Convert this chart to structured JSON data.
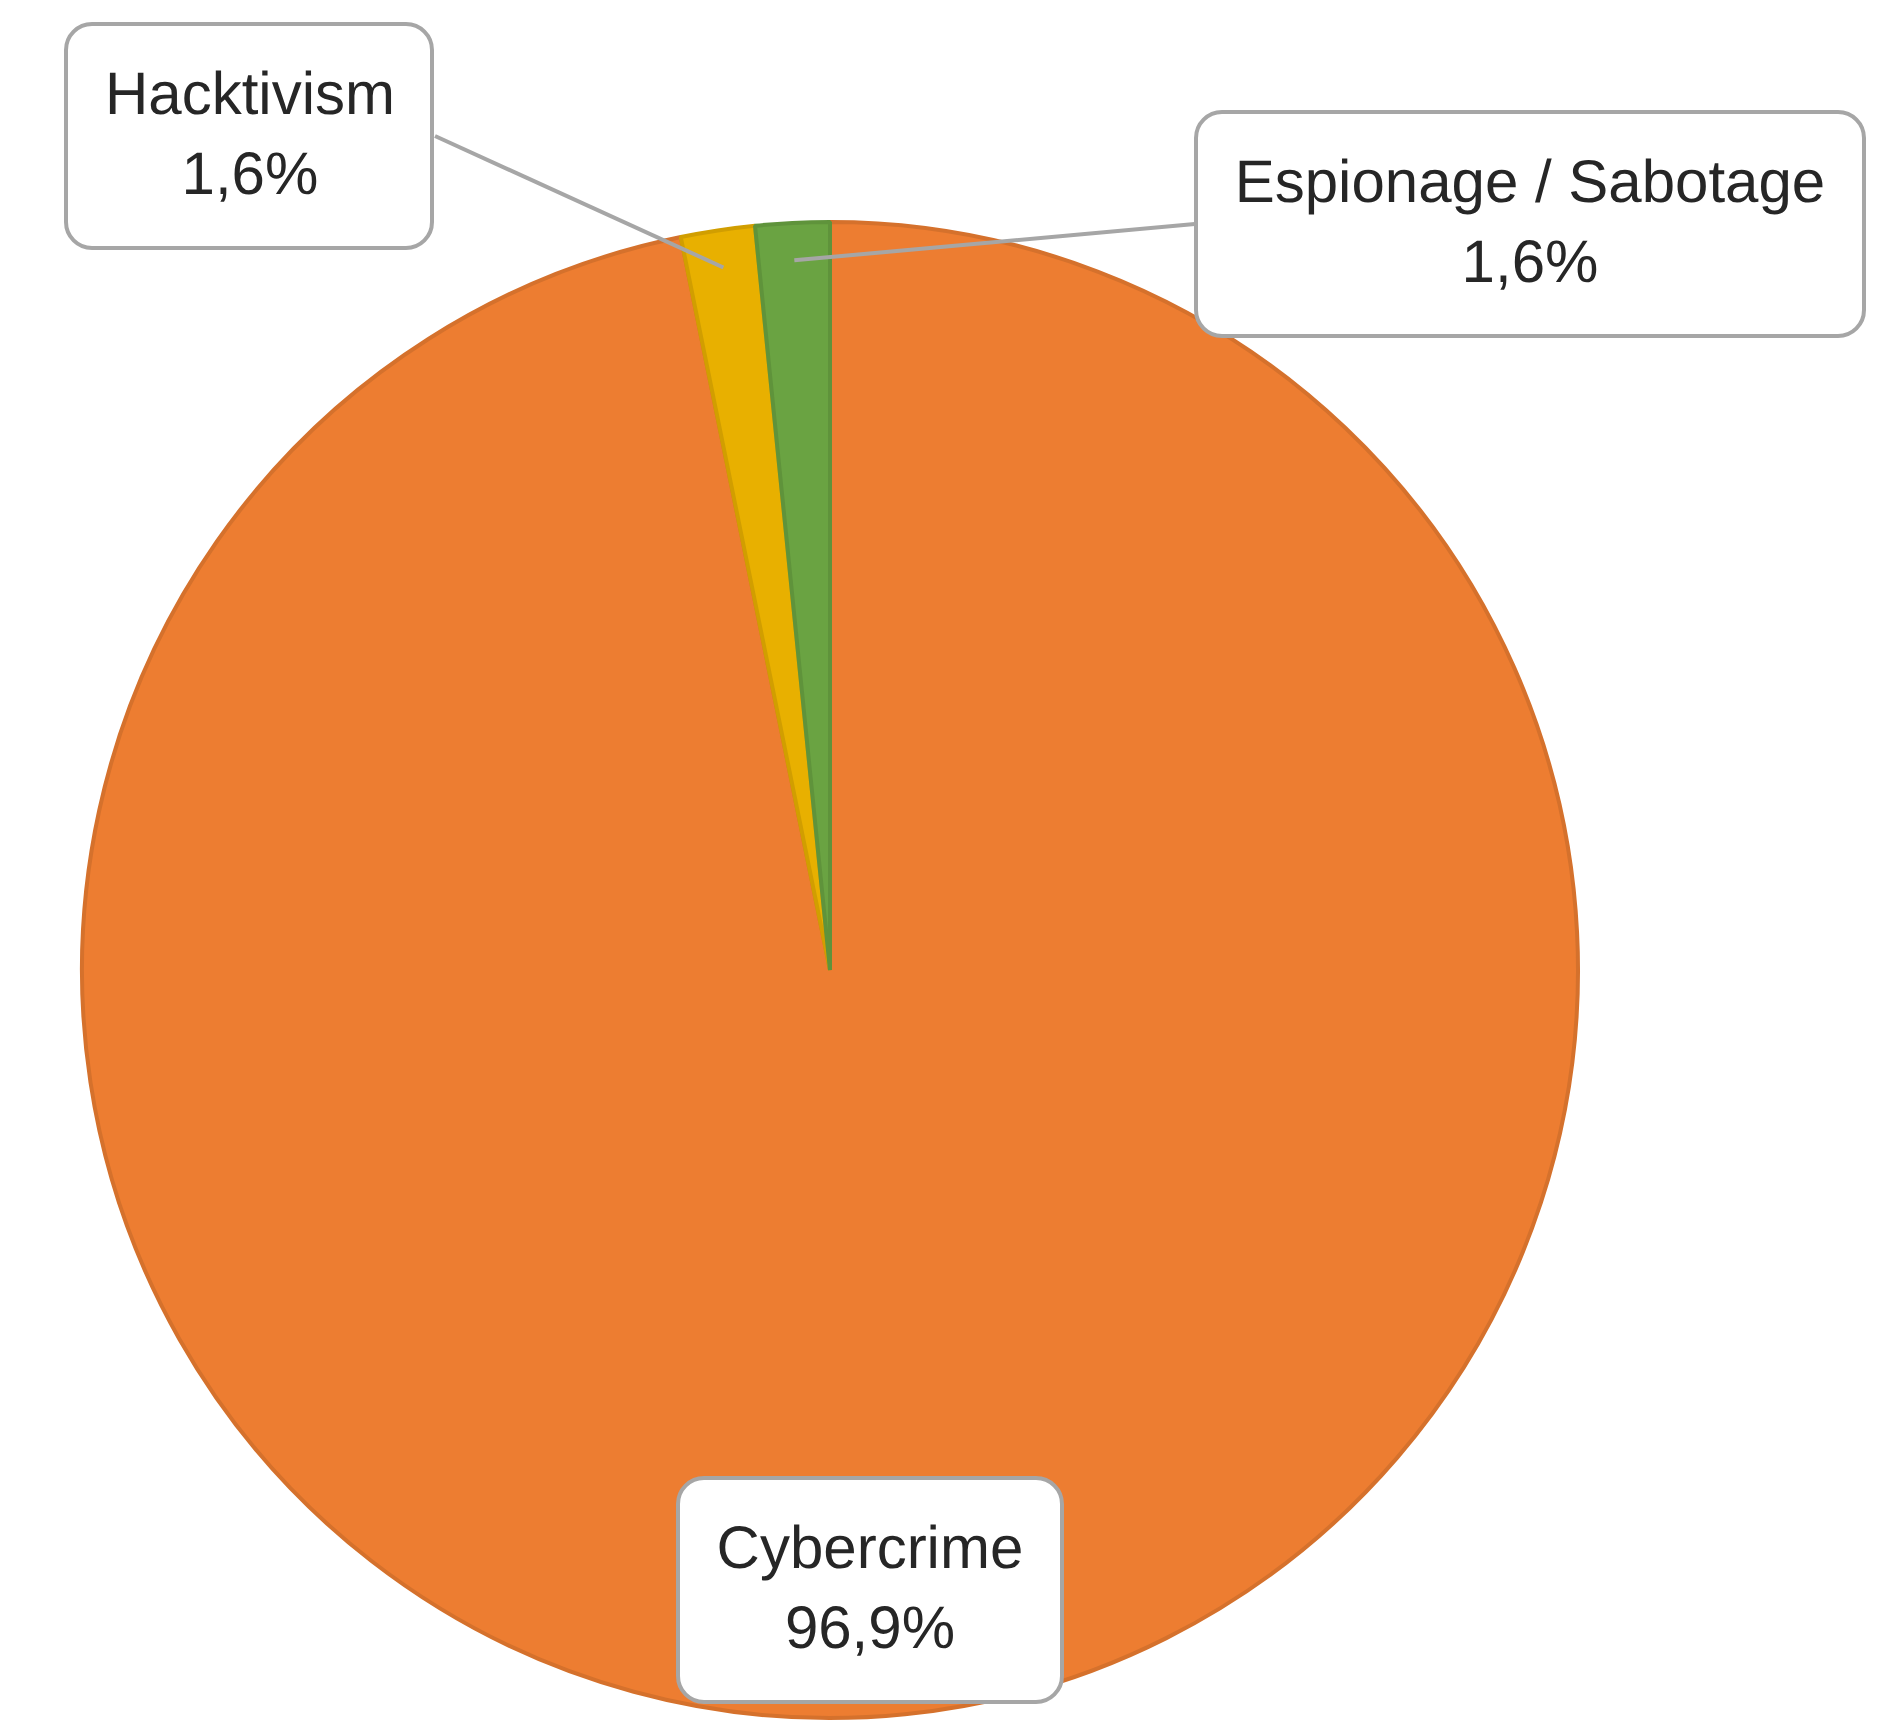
{
  "chart_data": {
    "type": "pie",
    "categories": [
      "Cybercrime",
      "Hacktivism",
      "Espionage / Sabotage"
    ],
    "values": [
      96.9,
      1.6,
      1.6
    ],
    "colors": [
      "#ed7d31",
      "#e8b000",
      "#6aa342"
    ],
    "value_labels": [
      "96,9%",
      "1,6%",
      "1,6%"
    ],
    "legend": false
  }
}
